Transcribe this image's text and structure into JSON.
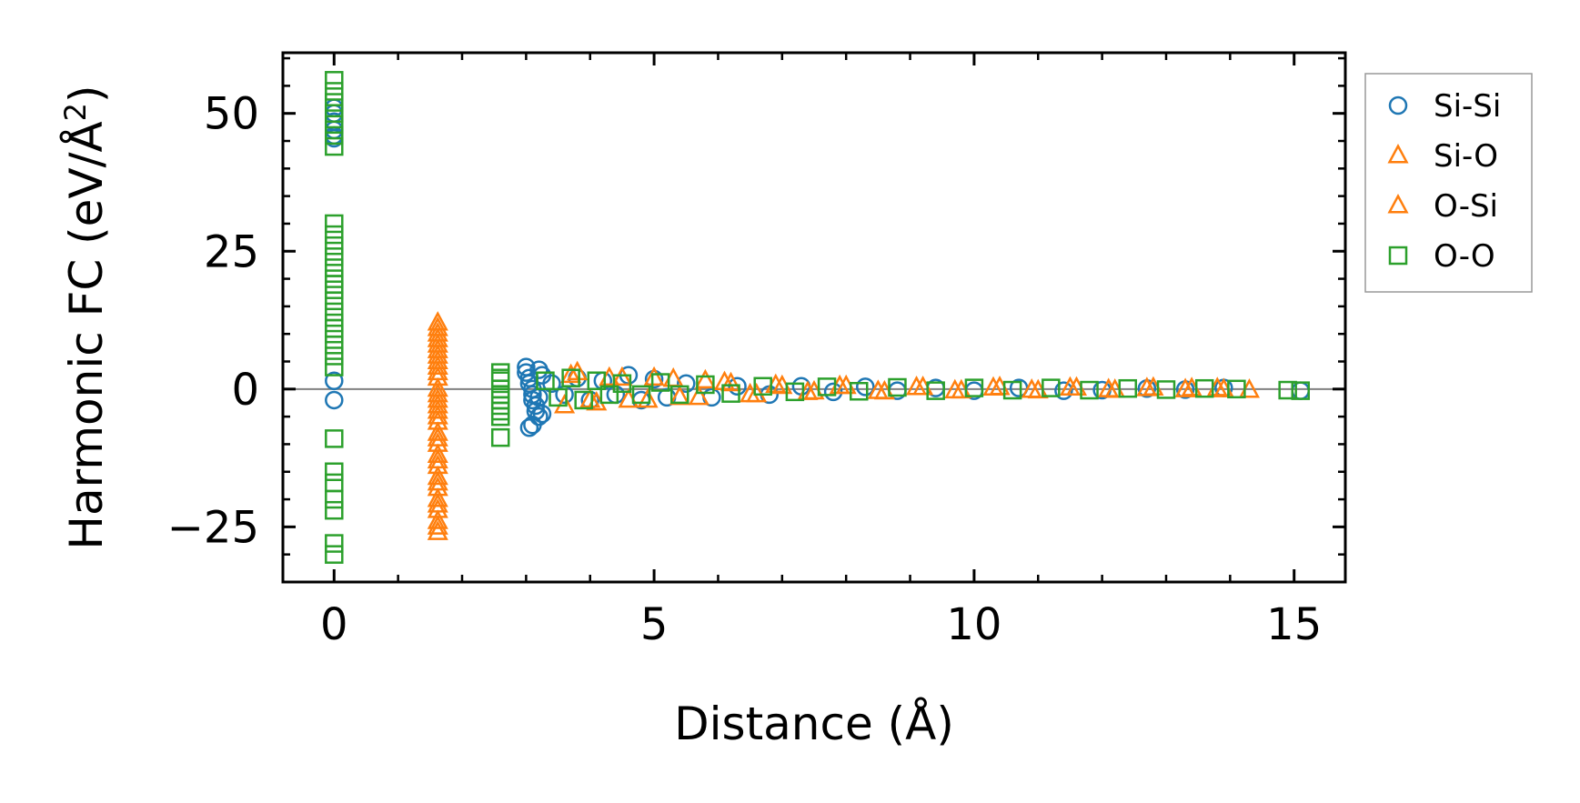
{
  "chart_data": {
    "type": "scatter",
    "title": "",
    "xlabel": "Distance (Å)",
    "ylabel_parts": {
      "prefix": "Harmonic FC (eV/Å",
      "sup": "2",
      "suffix": ")"
    },
    "xlim": [
      -0.8,
      15.8
    ],
    "ylim": [
      -35,
      61
    ],
    "xticks": [
      0,
      5,
      10,
      15
    ],
    "xtick_labels": [
      "0",
      "5",
      "10",
      "15"
    ],
    "yticks": [
      -25,
      0,
      25,
      50
    ],
    "ytick_labels": [
      "−25",
      "0",
      "25",
      "50"
    ],
    "grid": false,
    "legend_position": "outside-right-top",
    "zero_line": true,
    "series": [
      {
        "name": "Si-Si",
        "marker": "circle",
        "color": "#1f77b4",
        "x": [
          0,
          0,
          0,
          0,
          0,
          0,
          0,
          0,
          3.0,
          3.0,
          3.05,
          3.05,
          3.1,
          3.1,
          3.1,
          3.15,
          3.15,
          3.2,
          3.2,
          3.2,
          3.25,
          3.25,
          3.1,
          3.05,
          3.4,
          3.6,
          3.8,
          4.0,
          4.2,
          4.4,
          4.6,
          4.8,
          5.0,
          5.2,
          5.5,
          5.9,
          6.3,
          6.8,
          7.3,
          7.8,
          8.3,
          8.8,
          9.4,
          10.0,
          10.7,
          11.4,
          12.0,
          12.7,
          13.3,
          13.9,
          15.1
        ],
        "y": [
          51,
          50,
          48.5,
          47,
          46,
          45.5,
          1.5,
          -2,
          4,
          3,
          2,
          1,
          0,
          -1,
          -2,
          -3,
          -4,
          -5,
          3.5,
          -1.5,
          2.5,
          -4.5,
          -6.5,
          -7,
          1,
          -1,
          2,
          -2,
          1.5,
          -1,
          2.5,
          -2,
          1.8,
          -1.5,
          1,
          -1.5,
          0.5,
          -1,
          0.5,
          -0.5,
          0.4,
          -0.3,
          0.2,
          -0.3,
          0.2,
          -0.3,
          -0.2,
          0.1,
          -0.1,
          0.2,
          -0.3
        ]
      },
      {
        "name": "Si-O",
        "marker": "triangle",
        "color": "#ff7f0e",
        "x": [
          1.62,
          1.62,
          1.62,
          1.62,
          1.62,
          1.62,
          1.62,
          1.62,
          1.62,
          1.62,
          1.62,
          1.62,
          1.62,
          1.62,
          1.62,
          1.62,
          1.62,
          1.62,
          1.62,
          1.62,
          1.62,
          1.62,
          1.62,
          3.6,
          3.8,
          4.0,
          4.3,
          4.6,
          5.0,
          5.4,
          5.8,
          6.2,
          6.6,
          7.0,
          7.5,
          8.0,
          8.6,
          9.2,
          9.8,
          10.4,
          11.0,
          11.6,
          12.2,
          12.8,
          13.4,
          13.9,
          14.3
        ],
        "y": [
          12,
          10,
          8,
          6,
          4,
          2,
          0,
          -2,
          -4,
          -6,
          -8,
          -10,
          -12,
          -14,
          -16,
          -18,
          -20,
          -22,
          -24,
          -26,
          5,
          -3,
          9,
          -3,
          3,
          -2,
          2,
          -2,
          2,
          -1.5,
          1.5,
          1,
          -1,
          0.5,
          -0.5,
          0.5,
          -0.5,
          0.3,
          -0.3,
          0.3,
          -0.3,
          0.2,
          -0.2,
          0.2,
          0.1,
          -0.1,
          -0.2
        ]
      },
      {
        "name": "O-Si",
        "marker": "triangle",
        "color": "#ff7f0e",
        "x": [
          1.62,
          1.62,
          1.62,
          1.62,
          1.62,
          1.62,
          1.62,
          1.62,
          1.62,
          1.62,
          3.7,
          4.1,
          4.5,
          4.9,
          5.3,
          5.7,
          6.1,
          6.5,
          6.9,
          7.4,
          7.9,
          8.5,
          9.1,
          9.7,
          10.3,
          10.9,
          11.5,
          12.1,
          12.7,
          13.3,
          13.8
        ],
        "y": [
          11,
          7,
          3,
          -1,
          -5,
          -9,
          -13,
          -17,
          -21,
          -25,
          2.5,
          -2.5,
          2,
          -2,
          1.8,
          -1.5,
          1.2,
          -1,
          0.7,
          -0.6,
          0.5,
          -0.4,
          0.3,
          -0.3,
          0.2,
          -0.2,
          0.2,
          -0.1,
          0.1,
          -0.1,
          0.1
        ]
      },
      {
        "name": "O-O",
        "marker": "square",
        "color": "#2ca02c",
        "x": [
          0,
          0,
          0,
          0,
          0,
          0,
          0,
          0,
          0,
          0,
          0,
          0,
          0,
          0,
          0,
          0,
          0,
          0,
          0,
          0,
          0,
          0,
          0,
          0,
          0,
          0,
          0,
          0,
          0,
          0,
          2.6,
          2.6,
          2.6,
          2.6,
          2.6,
          2.6,
          2.6,
          2.6,
          2.6,
          2.6,
          3.3,
          3.5,
          3.7,
          3.9,
          4.1,
          4.3,
          4.5,
          4.8,
          5.1,
          5.4,
          5.8,
          6.2,
          6.7,
          7.2,
          7.7,
          8.2,
          8.8,
          9.4,
          10.0,
          10.6,
          11.2,
          11.8,
          12.4,
          13.0,
          13.6,
          14.1,
          14.9,
          15.1
        ],
        "y": [
          56,
          54,
          52,
          50,
          48,
          46,
          44,
          30,
          28,
          26,
          24,
          22,
          20,
          18,
          16,
          14,
          12,
          10,
          8,
          6,
          4,
          -9,
          -15,
          -17,
          -20,
          -22,
          -28,
          -30,
          19,
          11,
          3,
          1.5,
          0,
          -1,
          -2,
          -3,
          -4,
          -5,
          2,
          -8.8,
          1.5,
          -1.5,
          2,
          -2,
          1.5,
          -1,
          1,
          -1,
          1.2,
          -1,
          0.8,
          -0.8,
          0.5,
          -0.5,
          0.4,
          -0.4,
          0.3,
          -0.3,
          0.2,
          -0.2,
          0.2,
          -0.2,
          0.1,
          -0.1,
          0.1,
          0.0,
          -0.2,
          -0.3
        ]
      }
    ]
  }
}
